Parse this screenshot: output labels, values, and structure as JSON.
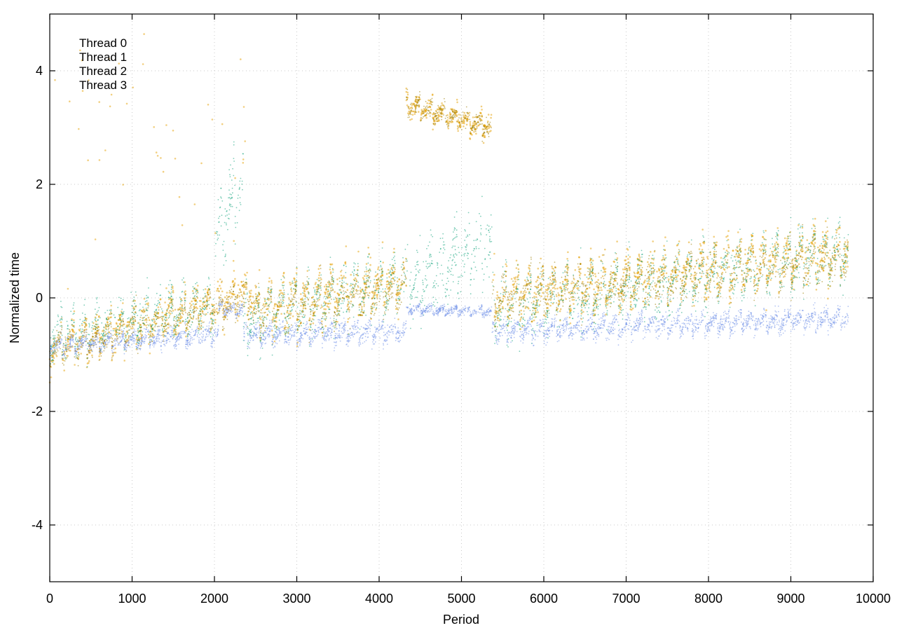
{
  "chart_data": {
    "type": "scatter",
    "title": "",
    "xlabel": "Period",
    "ylabel": "Normalized time",
    "xlim": [
      0,
      10000
    ],
    "ylim": [
      -5,
      5
    ],
    "x_ticks": [
      0,
      1000,
      2000,
      3000,
      4000,
      5000,
      6000,
      7000,
      8000,
      9000,
      10000
    ],
    "y_ticks": [
      -4,
      -2,
      0,
      2,
      4
    ],
    "grid": true,
    "legend_position": "top-left",
    "series": [
      {
        "name": "Thread 0",
        "color": "#e69f00",
        "points": 2600,
        "description_segments": [
          {
            "x": [
              0,
              2450
            ],
            "y_start": -0.9,
            "y_end": 0.1,
            "spread": 0.35,
            "outlier_max": 4.9
          },
          {
            "x": [
              2450,
              4330
            ],
            "y_start": -0.2,
            "y_end": 0.3,
            "spread": 0.45
          },
          {
            "x": [
              4330,
              5370
            ],
            "y_start": 3.4,
            "y_end": 3.0,
            "spread": 0.2
          },
          {
            "x": [
              5370,
              9700
            ],
            "y_start": 0.0,
            "y_end": 0.8,
            "spread": 0.45
          }
        ]
      },
      {
        "name": "Thread 1",
        "color": "#9a7b00",
        "points": 2600,
        "description_segments": [
          {
            "x": [
              0,
              2450
            ],
            "y_start": -0.9,
            "y_end": 0.0,
            "spread": 0.3
          },
          {
            "x": [
              2450,
              4330
            ],
            "y_start": -0.3,
            "y_end": 0.2,
            "spread": 0.4
          },
          {
            "x": [
              4330,
              5370
            ],
            "y_start": 3.4,
            "y_end": 3.0,
            "spread": 0.18
          },
          {
            "x": [
              5370,
              9700
            ],
            "y_start": 0.0,
            "y_end": 0.7,
            "spread": 0.4
          }
        ]
      },
      {
        "name": "Thread 2",
        "color": "#009e73",
        "points": 2600,
        "description_segments": [
          {
            "x": [
              0,
              2000
            ],
            "y_start": -0.7,
            "y_end": -0.1,
            "spread": 0.4
          },
          {
            "x": [
              2000,
              2350
            ],
            "y_start": 1.0,
            "y_end": 2.2,
            "spread": 0.6
          },
          {
            "x": [
              2350,
              4330
            ],
            "y_start": -0.4,
            "y_end": 0.3,
            "spread": 0.5
          },
          {
            "x": [
              4330,
              5370
            ],
            "y_start": 0.2,
            "y_end": 1.0,
            "spread": 0.6
          },
          {
            "x": [
              5370,
              9700
            ],
            "y_start": -0.2,
            "y_end": 0.8,
            "spread": 0.5
          }
        ]
      },
      {
        "name": "Thread 3",
        "color": "#6c8ee8",
        "points": 3600,
        "description_segments": [
          {
            "x": [
              0,
              2050
            ],
            "y_start": -0.85,
            "y_end": -0.65,
            "spread": 0.15
          },
          {
            "x": [
              2050,
              2350
            ],
            "y_start": -0.2,
            "y_end": -0.2,
            "spread": 0.12
          },
          {
            "x": [
              2350,
              4330
            ],
            "y_start": -0.65,
            "y_end": -0.6,
            "spread": 0.18
          },
          {
            "x": [
              4330,
              5370
            ],
            "y_start": -0.2,
            "y_end": -0.25,
            "spread": 0.08
          },
          {
            "x": [
              5370,
              9700
            ],
            "y_start": -0.6,
            "y_end": -0.35,
            "spread": 0.18
          }
        ]
      }
    ]
  }
}
